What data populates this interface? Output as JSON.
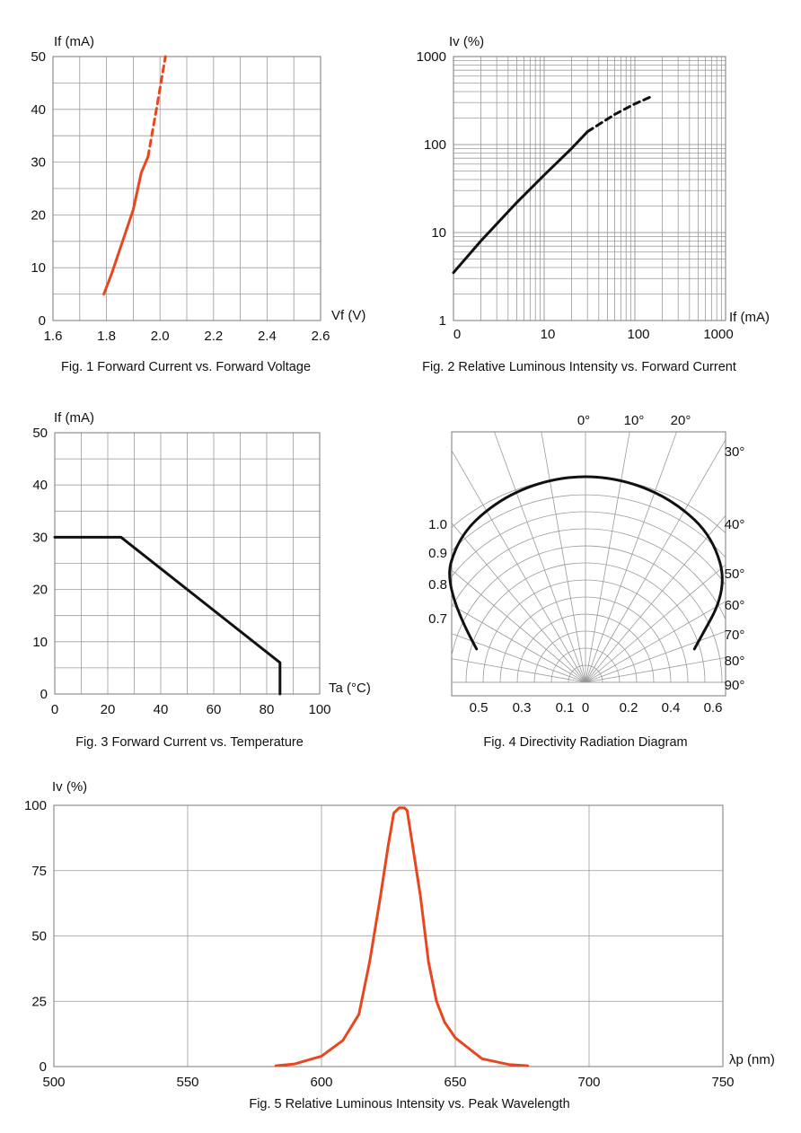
{
  "colors": {
    "curve_red": "#e8461e",
    "curve_black": "#111111",
    "grid": "#9a9a9a"
  },
  "chart_data": [
    {
      "id": "fig1",
      "type": "line",
      "title": "Fig. 1 Forward Current vs. Forward Voltage",
      "xlabel": "Vf (V)",
      "ylabel": "If (mA)",
      "xlim": [
        1.6,
        2.6
      ],
      "ylim": [
        0,
        50
      ],
      "xticks": [
        "1.6",
        "1.8",
        "2.0",
        "2.2",
        "2.4",
        "2.6"
      ],
      "yticks": [
        "0",
        "10",
        "20",
        "30",
        "40",
        "50"
      ],
      "series": [
        {
          "name": "measured",
          "style": "solid",
          "color": "red",
          "x": [
            1.79,
            1.82,
            1.86,
            1.9,
            1.93,
            1.955
          ],
          "y": [
            5,
            9,
            15,
            21,
            28,
            31
          ]
        },
        {
          "name": "extrapolated",
          "style": "dashed",
          "color": "red",
          "x": [
            1.955,
            1.99,
            2.02
          ],
          "y": [
            31,
            41,
            50
          ]
        }
      ]
    },
    {
      "id": "fig2",
      "type": "line",
      "scale": "log-log",
      "title": "Fig. 2 Relative Luminous Intensity vs. Forward Current",
      "xlabel": "If (mA)",
      "ylabel": "Iv (%)",
      "xlim": [
        1,
        1000
      ],
      "ylim": [
        1,
        1000
      ],
      "xticks": [
        "0",
        "10",
        "100",
        "1000"
      ],
      "yticks": [
        "1",
        "10",
        "100",
        "1000"
      ],
      "series": [
        {
          "name": "measured",
          "style": "solid",
          "color": "black",
          "x": [
            1,
            2,
            5,
            10,
            20,
            30
          ],
          "y": [
            3.5,
            8,
            22,
            45,
            90,
            140
          ]
        },
        {
          "name": "extrapolated",
          "style": "dashed",
          "color": "black",
          "x": [
            30,
            60,
            100,
            160
          ],
          "y": [
            140,
            220,
            290,
            360
          ]
        }
      ]
    },
    {
      "id": "fig3",
      "type": "line",
      "title": "Fig. 3 Forward Current vs. Temperature",
      "xlabel": "Ta (°C)",
      "ylabel": "If (mA)",
      "xlim": [
        0,
        100
      ],
      "ylim": [
        0,
        50
      ],
      "xticks": [
        "0",
        "20",
        "40",
        "60",
        "80",
        "100"
      ],
      "yticks": [
        "0",
        "10",
        "20",
        "30",
        "40",
        "50"
      ],
      "series": [
        {
          "name": "derating",
          "style": "solid",
          "color": "black",
          "x": [
            0,
            25,
            85,
            85
          ],
          "y": [
            30,
            30,
            6,
            0
          ]
        }
      ]
    },
    {
      "id": "fig4",
      "type": "polar",
      "title": "Fig. 4 Directivity Radiation Diagram",
      "angle_labels": [
        "0°",
        "10°",
        "20°",
        "30°",
        "40°",
        "50°",
        "60°",
        "70°",
        "80°",
        "90°"
      ],
      "radial_labels": [
        "1.0",
        "0.9",
        "0.8",
        "0.7"
      ],
      "bottom_labels": [
        "0.5",
        "0.3",
        "0.1",
        "0",
        "0.2",
        "0.4",
        "0.6"
      ],
      "series": [
        {
          "name": "pattern",
          "style": "solid",
          "color": "black",
          "angles": [
            -75,
            -60,
            -45,
            -30,
            -15,
            0,
            15,
            30,
            45,
            60,
            75
          ],
          "values": [
            0.62,
            0.9,
            0.99,
            1.0,
            1.0,
            1.0,
            1.0,
            1.0,
            0.99,
            0.9,
            0.62
          ]
        }
      ]
    },
    {
      "id": "fig5",
      "type": "line",
      "title": "Fig. 5 Relative Luminous Intensity vs. Peak Wavelength",
      "xlabel": "λp (nm)",
      "ylabel": "Iv (%)",
      "xlim": [
        500,
        750
      ],
      "ylim": [
        0,
        100
      ],
      "xticks": [
        "500",
        "550",
        "600",
        "650",
        "700",
        "750"
      ],
      "yticks": [
        "0",
        "25",
        "50",
        "75",
        "100"
      ],
      "series": [
        {
          "name": "spectrum",
          "style": "solid",
          "color": "red",
          "x": [
            583,
            590,
            600,
            608,
            614,
            618,
            622,
            625,
            627,
            629,
            630,
            631,
            632,
            634,
            637,
            640,
            643,
            646,
            650,
            660,
            670,
            677
          ],
          "y": [
            0.3,
            1,
            4,
            10,
            20,
            40,
            65,
            85,
            97,
            99,
            99,
            99,
            98,
            85,
            65,
            40,
            25,
            17,
            11,
            3,
            0.8,
            0.3
          ]
        }
      ]
    }
  ]
}
